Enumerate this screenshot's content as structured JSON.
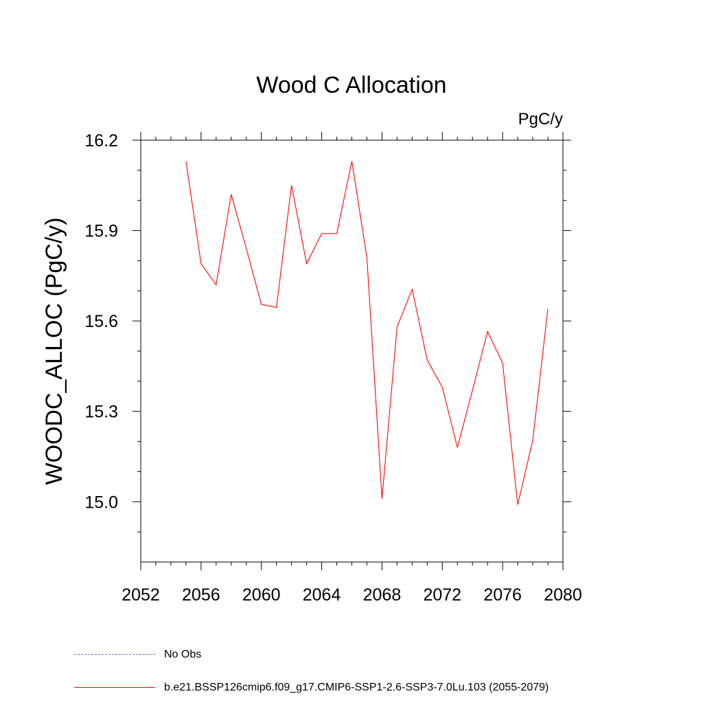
{
  "chart_data": {
    "type": "line",
    "title": "Wood C Allocation",
    "units_label": "PgC/y",
    "xlabel": "",
    "ylabel": "WOODC_ALLOC  (PgC/y)",
    "xlim": [
      2052,
      2080
    ],
    "ylim": [
      14.8,
      16.2
    ],
    "x_ticks": [
      "2052",
      "2056",
      "2060",
      "2064",
      "2068",
      "2072",
      "2076",
      "2080"
    ],
    "y_ticks": [
      "15.0",
      "15.3",
      "15.6",
      "15.9",
      "16.2"
    ],
    "x": [
      2055,
      2056,
      2057,
      2058,
      2059,
      2060,
      2061,
      2062,
      2063,
      2064,
      2065,
      2066,
      2067,
      2068,
      2069,
      2070,
      2071,
      2072,
      2073,
      2074,
      2075,
      2076,
      2077,
      2078,
      2079
    ],
    "series": [
      {
        "name": "b.e21.BSSP126cmip6.f09_g17.CMIP6-SSP1-2.6-SSP3-7.0Lu.103 (2055-2079)",
        "color": "#ff0000",
        "values": [
          16.13,
          15.79,
          15.72,
          16.02,
          15.84,
          15.655,
          15.645,
          16.05,
          15.79,
          15.89,
          15.89,
          16.13,
          15.81,
          15.01,
          15.58,
          15.705,
          15.47,
          15.38,
          15.18,
          15.37,
          15.565,
          15.46,
          14.99,
          15.205,
          15.64
        ]
      }
    ],
    "legend": [
      {
        "label": "No Obs",
        "color": "#7b68c8",
        "style": "dashed"
      },
      {
        "label": "b.e21.BSSP126cmip6.f09_g17.CMIP6-SSP1-2.6-SSP3-7.0Lu.103 (2055-2079)",
        "color": "#ff0000",
        "style": "solid"
      }
    ],
    "grid": false,
    "legend_placement": "bottom-left"
  }
}
